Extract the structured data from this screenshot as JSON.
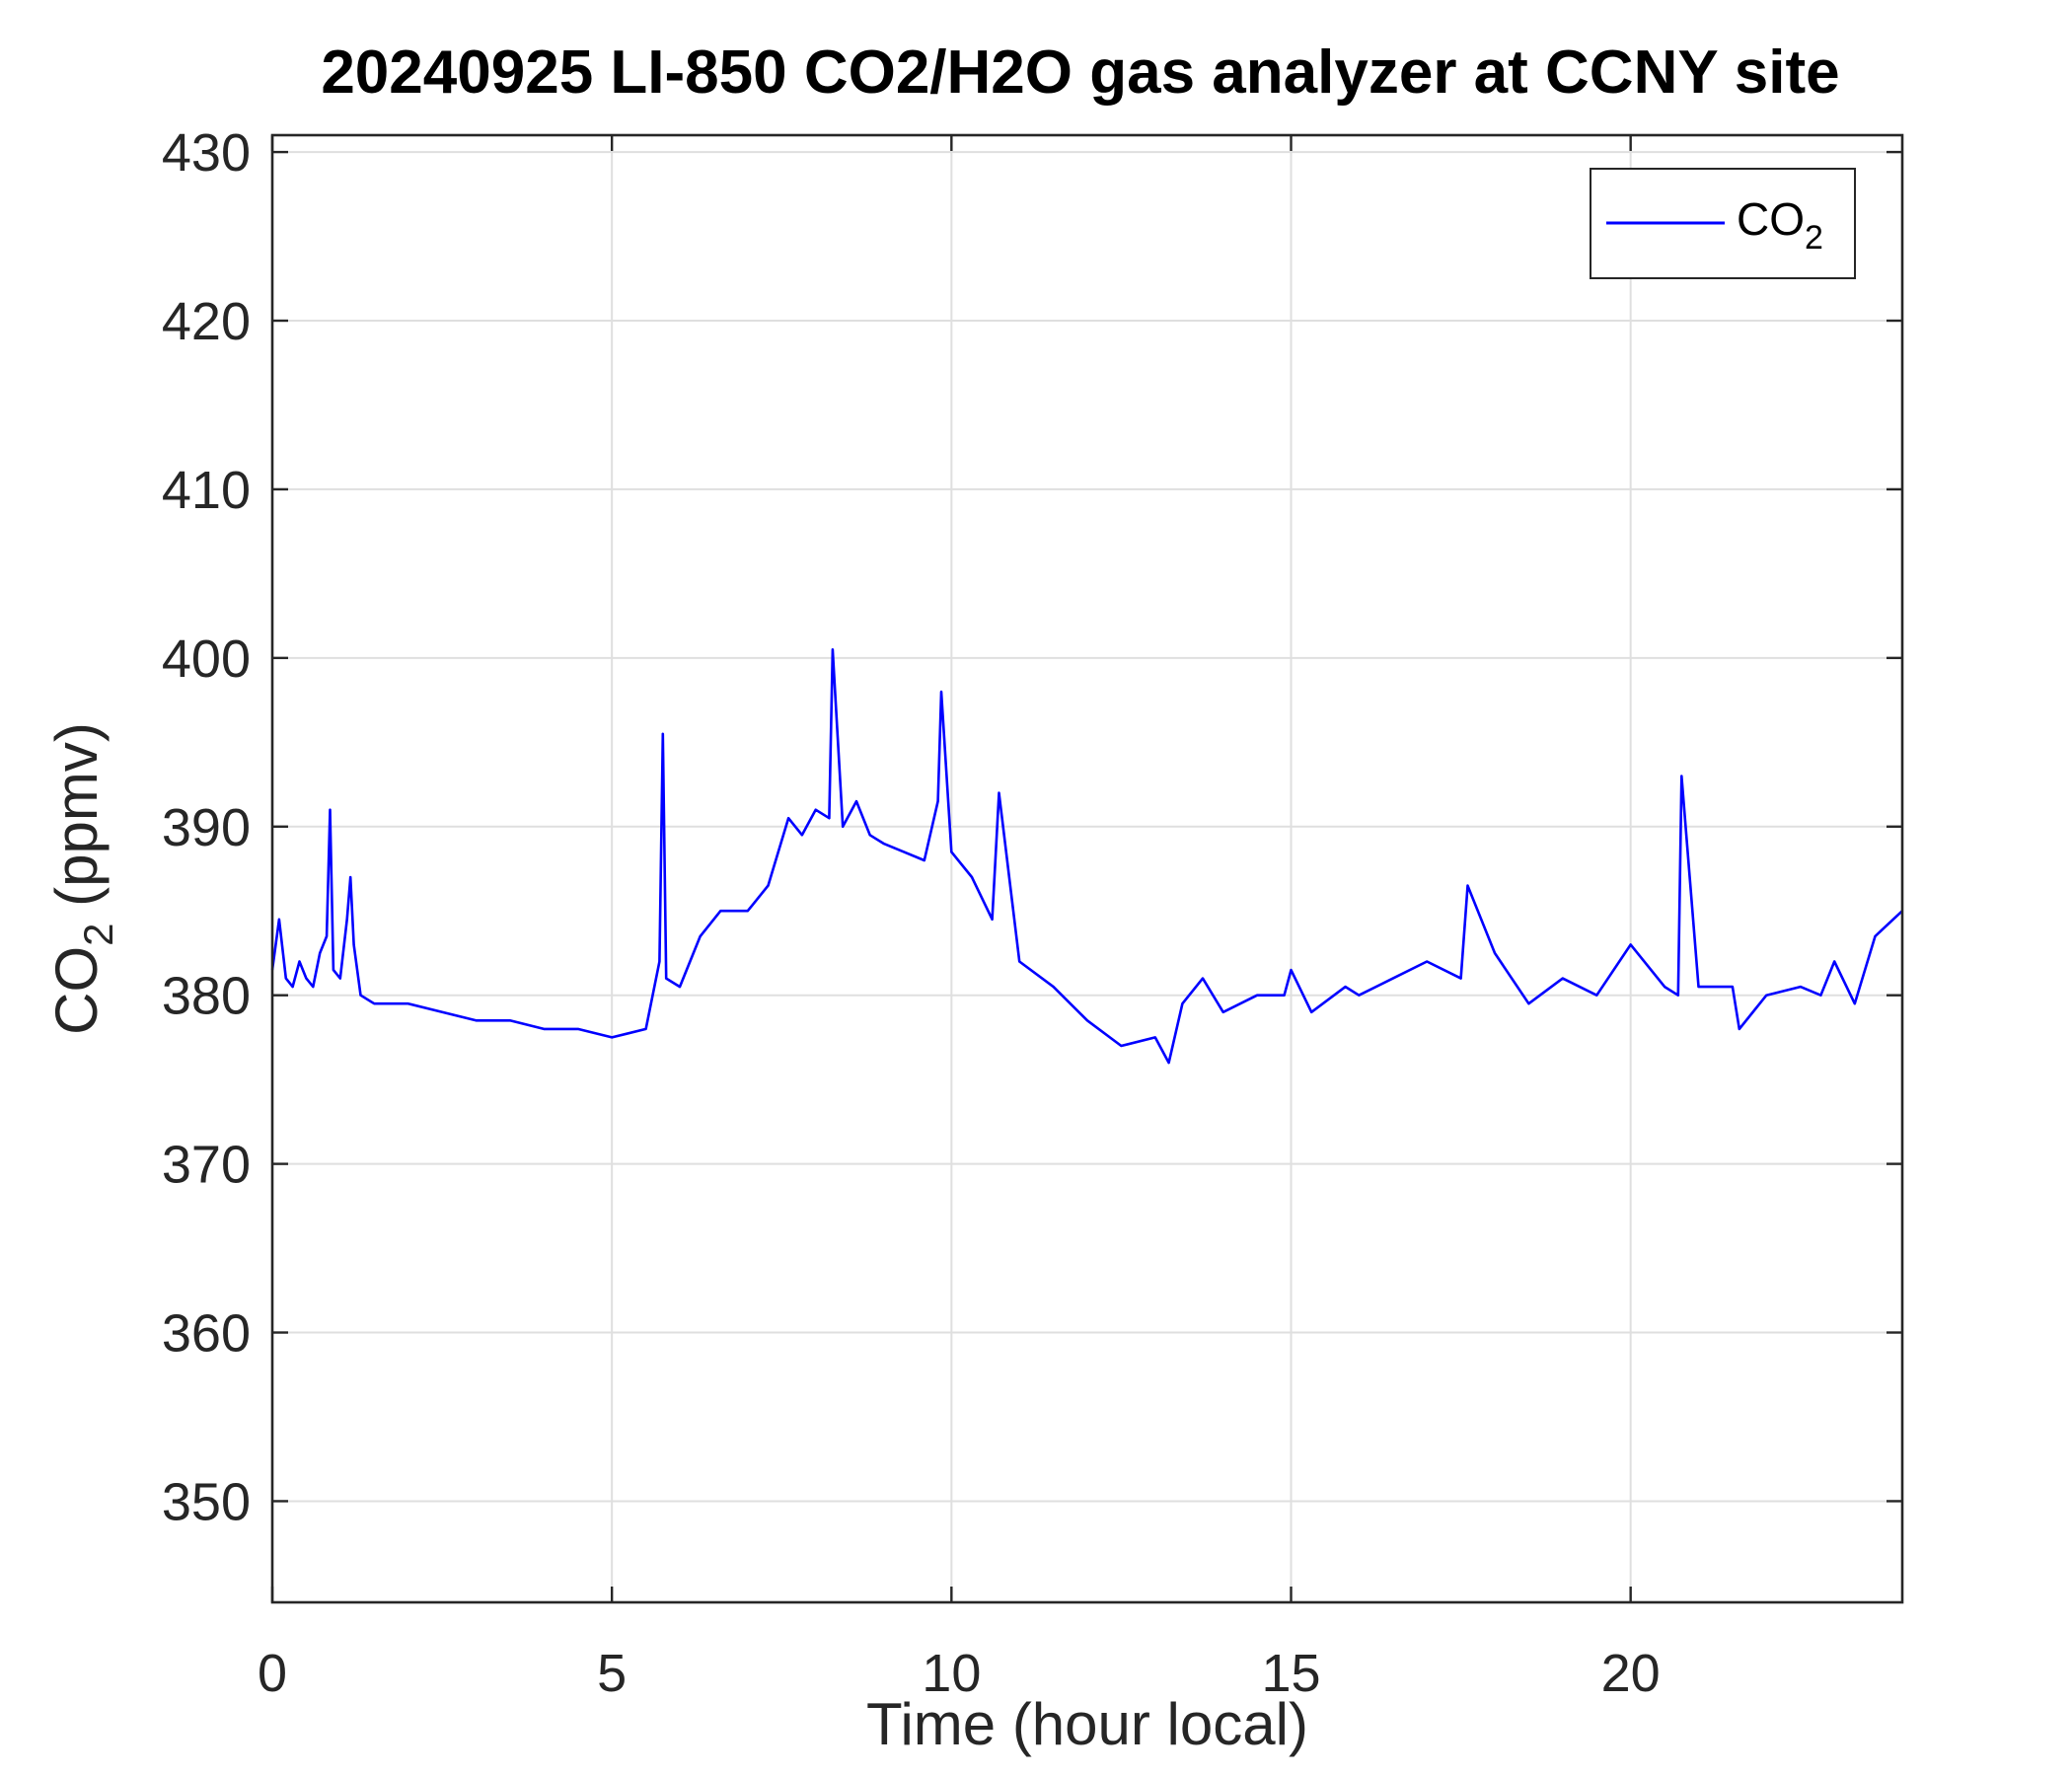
{
  "chart_data": {
    "type": "line",
    "title": "20240925 LI-850 CO2/H2O gas analyzer at CCNY site",
    "xlabel": "Time (hour local)",
    "ylabel_main": "CO",
    "ylabel_sub": "2",
    "ylabel_unit": " (ppmv)",
    "xlim": [
      0,
      24
    ],
    "ylim": [
      344,
      431
    ],
    "xticks": [
      0,
      5,
      10,
      15,
      20
    ],
    "yticks": [
      350,
      360,
      370,
      380,
      390,
      400,
      410,
      420,
      430
    ],
    "grid": true,
    "legend_position": "top-right",
    "series": [
      {
        "name_main": "CO",
        "name_sub": "2",
        "color": "#0000FF",
        "x": [
          0,
          0.1,
          0.2,
          0.3,
          0.4,
          0.5,
          0.6,
          0.7,
          0.8,
          0.85,
          0.9,
          1.0,
          1.1,
          1.15,
          1.2,
          1.3,
          1.5,
          2.0,
          2.5,
          3.0,
          3.5,
          4.0,
          4.5,
          5.0,
          5.5,
          5.7,
          5.75,
          5.8,
          6.0,
          6.3,
          6.6,
          7.0,
          7.3,
          7.6,
          7.8,
          8.0,
          8.2,
          8.25,
          8.4,
          8.6,
          8.8,
          9.0,
          9.3,
          9.6,
          9.8,
          9.85,
          10.0,
          10.3,
          10.6,
          10.7,
          11.0,
          11.5,
          12.0,
          12.5,
          13.0,
          13.2,
          13.4,
          13.7,
          14.0,
          14.5,
          14.9,
          15.0,
          15.3,
          15.8,
          16.0,
          16.5,
          17.0,
          17.5,
          17.6,
          18.0,
          18.5,
          19.0,
          19.5,
          20.0,
          20.5,
          20.7,
          20.75,
          21.0,
          21.5,
          21.6,
          22.0,
          22.5,
          22.8,
          23.0,
          23.3,
          23.6,
          24.0
        ],
        "y": [
          381.5,
          384.5,
          381.0,
          380.5,
          382.0,
          381.0,
          380.5,
          382.5,
          383.5,
          391.0,
          381.5,
          381.0,
          384.5,
          387.0,
          383.0,
          380.0,
          379.5,
          379.5,
          379.0,
          378.5,
          378.5,
          378.0,
          378.0,
          377.5,
          378.0,
          382.0,
          395.5,
          381.0,
          380.5,
          383.5,
          385.0,
          385.0,
          386.5,
          390.5,
          389.5,
          391.0,
          390.5,
          400.5,
          390.0,
          391.5,
          389.5,
          389.0,
          388.5,
          388.0,
          391.5,
          398.0,
          388.5,
          387.0,
          384.5,
          392.0,
          382.0,
          380.5,
          378.5,
          377.0,
          377.5,
          376.0,
          379.5,
          381.0,
          379.0,
          380.0,
          380.0,
          381.5,
          379.0,
          380.5,
          380.0,
          381.0,
          382.0,
          381.0,
          386.5,
          382.5,
          379.5,
          381.0,
          380.0,
          383.0,
          380.5,
          380.0,
          393.0,
          380.5,
          380.5,
          378.0,
          380.0,
          380.5,
          380.0,
          382.0,
          379.5,
          383.5,
          385.0
        ]
      }
    ]
  }
}
